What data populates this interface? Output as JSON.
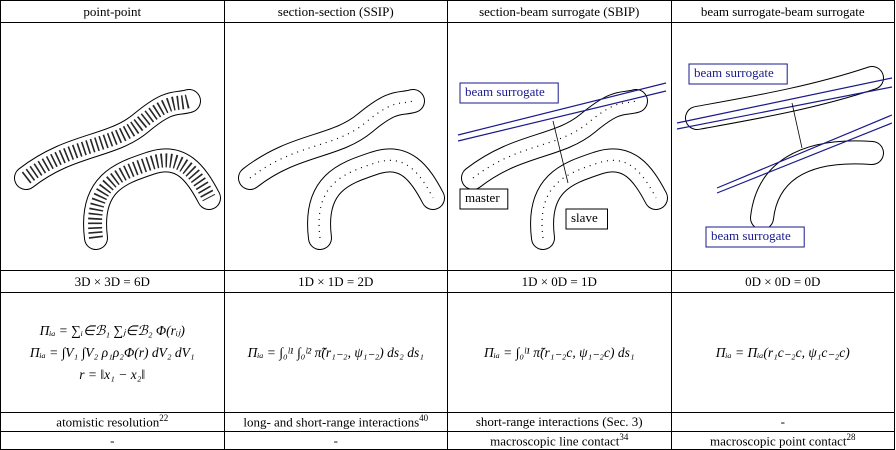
{
  "table": {
    "header": [
      "point-point",
      "section-section (SSIP)",
      "section-beam surrogate (SBIP)",
      "beam surrogate-beam surrogate"
    ],
    "figure_labels": {
      "sbip": {
        "surrogate": "beam surrogate",
        "master": "master",
        "slave": "slave"
      },
      "bsbs": [
        "beam surrogate",
        "beam surrogate"
      ]
    },
    "dimensions": [
      "3D × 3D = 6D",
      "1D × 1D = 2D",
      "1D × 0D = 1D",
      "0D × 0D = 0D"
    ],
    "formulas": [
      [
        "Πᵢₐ = ∑ᵢ∈ℬ₁ ∑ⱼ∈ℬ₂ Φ(rᵢⱼ)",
        "Πᵢₐ = ∫V₁ ∫V₂ ρ₁ρ₂Φ(r) dV₂ dV₁",
        "r = ‖x₁ − x₂‖"
      ],
      [
        "Πᵢₐ = ∫₀ˡ¹ ∫₀ˡ² π̃̃(r₁₋₂, ψ₁₋₂) ds₂ ds₁"
      ],
      [
        "Πᵢₐ = ∫₀ˡ¹ π̃(r₁₋₂c, ψ₁₋₂c) ds₁"
      ],
      [
        "Πᵢₐ = Πᵢₐ(r₁c₋₂c, ψ₁c₋₂c)"
      ]
    ],
    "scope": [
      {
        "text": "atomistic resolution",
        "ref": "22"
      },
      {
        "text": "long- and short-range interactions",
        "ref": "40"
      },
      {
        "text": "short-range interactions (Sec. 3)"
      },
      {
        "text": "-"
      }
    ],
    "contact": [
      {
        "text": "-"
      },
      {
        "text": "-"
      },
      {
        "text": "macroscopic line contact",
        "ref": "34"
      },
      {
        "text": "macroscopic point contact",
        "ref": "28"
      }
    ]
  }
}
